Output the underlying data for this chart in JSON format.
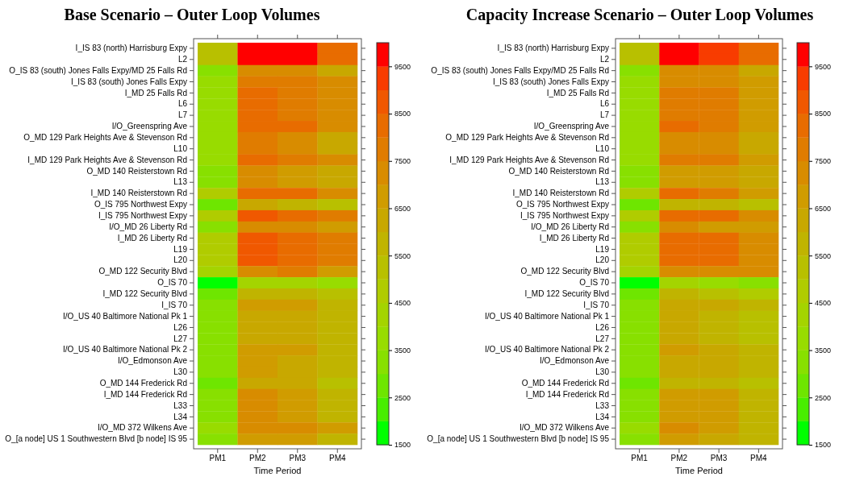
{
  "chart_data": [
    {
      "type": "heatmap",
      "title": "Base Scenario – Outer Loop Volumes",
      "xlabel": "Time Period",
      "categories": [
        "PM1",
        "PM2",
        "PM3",
        "PM4"
      ],
      "y_categories": [
        "I_IS 83 (north) Harrisburg Expy",
        "L2",
        "O_IS 83 (south) Jones Falls Expy/MD 25 Falls Rd",
        "I_IS 83 (south) Jones Falls Expy",
        "I_MD 25 Falls Rd",
        "L6",
        "L7",
        "I/O_Greenspring Ave",
        "O_MD 129 Park Heights Ave & Stevenson Rd",
        "L10",
        "I_MD 129 Park Heights Ave & Stevenson Rd",
        "O_MD 140 Reisterstown Rd",
        "L13",
        "I_MD 140 Reisterstown Rd",
        "O_IS 795 Northwest Expy",
        "I_IS 795 Northwest Expy",
        "I/O_MD 26 Liberty Rd",
        "I_MD 26 Liberty Rd",
        "L19",
        "L20",
        "O_MD 122 Security Blvd",
        "O_IS 70",
        "I_MD 122 Security Blvd",
        "I_IS 70",
        "I/O_US 40 Baltimore National Pk 1",
        "L26",
        "L27",
        "I/O_US 40 Baltimore National Pk 2",
        "I/O_Edmonson Ave",
        "L30",
        "O_MD 144 Frederick Rd",
        "I_MD 144 Frederick Rd",
        "L33",
        "L34",
        "I/O_MD 372 Wilkens Ave",
        "O_[a node] US 1 Southwestern Blvd [b node] IS 95"
      ],
      "cells": [
        [
          5250,
          9750,
          9750,
          8250
        ],
        [
          5250,
          9750,
          9750,
          8250
        ],
        [
          3250,
          7250,
          7250,
          6250
        ],
        [
          3750,
          7750,
          7750,
          7250
        ],
        [
          3750,
          8250,
          7750,
          7250
        ],
        [
          3750,
          8250,
          7750,
          7250
        ],
        [
          3750,
          8250,
          7750,
          7250
        ],
        [
          3750,
          8250,
          8250,
          7250
        ],
        [
          3750,
          7750,
          7250,
          6250
        ],
        [
          3750,
          7750,
          7250,
          6250
        ],
        [
          3750,
          8250,
          7750,
          7250
        ],
        [
          3250,
          7250,
          6750,
          6250
        ],
        [
          3250,
          7250,
          6750,
          6250
        ],
        [
          4750,
          8250,
          8250,
          7250
        ],
        [
          2750,
          6250,
          5750,
          5250
        ],
        [
          4750,
          8750,
          8250,
          7750
        ],
        [
          3250,
          7250,
          7250,
          6750
        ],
        [
          4750,
          8750,
          8250,
          7750
        ],
        [
          4750,
          8750,
          8250,
          7750
        ],
        [
          4750,
          8750,
          8250,
          7750
        ],
        [
          4250,
          7250,
          7750,
          6750
        ],
        [
          1750,
          4250,
          4250,
          3750
        ],
        [
          2750,
          5750,
          5750,
          5250
        ],
        [
          3250,
          6750,
          6750,
          5750
        ],
        [
          3250,
          6250,
          6250,
          5750
        ],
        [
          3250,
          6250,
          6250,
          5750
        ],
        [
          3250,
          6250,
          6250,
          5750
        ],
        [
          3250,
          6750,
          6750,
          5750
        ],
        [
          3250,
          6750,
          6250,
          5750
        ],
        [
          3250,
          6750,
          6250,
          5750
        ],
        [
          2750,
          6250,
          6250,
          5250
        ],
        [
          3250,
          7250,
          6750,
          5750
        ],
        [
          3250,
          7250,
          6750,
          5750
        ],
        [
          3250,
          7250,
          6750,
          5750
        ],
        [
          3750,
          7250,
          7250,
          6750
        ],
        [
          3250,
          6750,
          6750,
          5750
        ]
      ],
      "clim": [
        1500,
        10000
      ],
      "cticks": [
        1500,
        2500,
        3500,
        4500,
        5500,
        6500,
        7500,
        8500,
        9500
      ]
    },
    {
      "type": "heatmap",
      "title": "Capacity Increase Scenario – Outer Loop Volumes",
      "xlabel": "Time Period",
      "categories": [
        "PM1",
        "PM2",
        "PM3",
        "PM4"
      ],
      "y_categories": [
        "I_IS 83 (north) Harrisburg Expy",
        "L2",
        "O_IS 83 (south) Jones Falls Expy/MD 25 Falls Rd",
        "I_IS 83 (south) Jones Falls Expy",
        "I_MD 25 Falls Rd",
        "L6",
        "L7",
        "I/O_Greenspring Ave",
        "O_MD 129 Park Heights Ave & Stevenson Rd",
        "L10",
        "I_MD 129 Park Heights Ave & Stevenson Rd",
        "O_MD 140 Reisterstown Rd",
        "L13",
        "I_MD 140 Reisterstown Rd",
        "O_IS 795 Northwest Expy",
        "I_IS 795 Northwest Expy",
        "I/O_MD 26 Liberty Rd",
        "I_MD 26 Liberty Rd",
        "L19",
        "L20",
        "O_MD 122 Security Blvd",
        "O_IS 70",
        "I_MD 122 Security Blvd",
        "I_IS 70",
        "I/O_US 40 Baltimore National Pk 1",
        "L26",
        "L27",
        "I/O_US 40 Baltimore National Pk 2",
        "I/O_Edmonson Ave",
        "L30",
        "O_MD 144 Frederick Rd",
        "I_MD 144 Frederick Rd",
        "L33",
        "L34",
        "I/O_MD 372 Wilkens Ave",
        "O_[a node] US 1 Southwestern Blvd [b node] IS 95"
      ],
      "cells": [
        [
          5250,
          9750,
          9250,
          8250
        ],
        [
          5250,
          9750,
          9250,
          8250
        ],
        [
          3250,
          7250,
          7250,
          6250
        ],
        [
          3750,
          7250,
          7250,
          6750
        ],
        [
          3750,
          7750,
          7750,
          6750
        ],
        [
          3750,
          7750,
          7750,
          6750
        ],
        [
          3750,
          7750,
          7750,
          6750
        ],
        [
          3750,
          8250,
          7750,
          6750
        ],
        [
          3750,
          7250,
          7250,
          6250
        ],
        [
          3750,
          7250,
          7250,
          6250
        ],
        [
          3750,
          7750,
          7750,
          6750
        ],
        [
          3250,
          6750,
          6750,
          6250
        ],
        [
          3250,
          6750,
          6750,
          6250
        ],
        [
          4750,
          8250,
          7750,
          6750
        ],
        [
          2750,
          5750,
          5750,
          5250
        ],
        [
          4750,
          8250,
          8250,
          7250
        ],
        [
          3250,
          7250,
          6750,
          6750
        ],
        [
          4750,
          8250,
          8250,
          7250
        ],
        [
          4750,
          8250,
          8250,
          7250
        ],
        [
          4750,
          8250,
          8250,
          7250
        ],
        [
          4250,
          7250,
          7250,
          7250
        ],
        [
          1750,
          4250,
          3750,
          3250
        ],
        [
          2750,
          5750,
          5250,
          4750
        ],
        [
          3250,
          6250,
          6250,
          5750
        ],
        [
          3250,
          6250,
          5750,
          5250
        ],
        [
          3250,
          6250,
          5750,
          5250
        ],
        [
          3250,
          6250,
          5750,
          5250
        ],
        [
          3250,
          6750,
          6250,
          5750
        ],
        [
          3250,
          6250,
          6250,
          5750
        ],
        [
          3250,
          6250,
          6250,
          5750
        ],
        [
          2750,
          5750,
          5750,
          5250
        ],
        [
          3250,
          6750,
          6750,
          5750
        ],
        [
          3250,
          6750,
          6750,
          5750
        ],
        [
          3250,
          6750,
          6750,
          5750
        ],
        [
          3750,
          7250,
          6750,
          5750
        ],
        [
          3250,
          6750,
          6250,
          5750
        ]
      ],
      "clim": [
        1500,
        10000
      ],
      "cticks": [
        1500,
        2500,
        3500,
        4500,
        5500,
        6500,
        7500,
        8500,
        9500
      ]
    }
  ]
}
